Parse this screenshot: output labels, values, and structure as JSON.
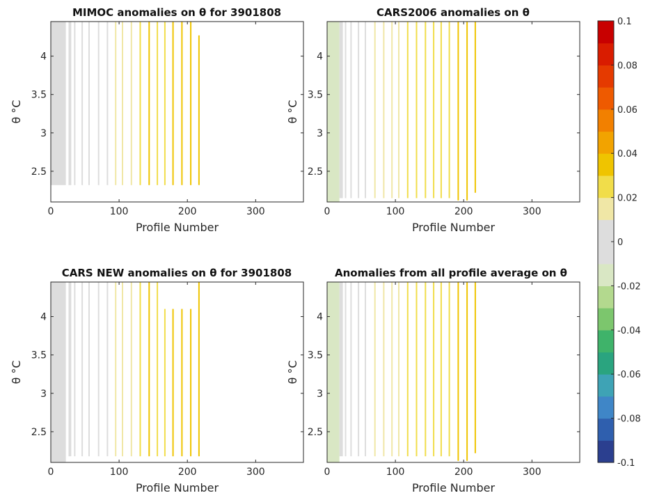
{
  "chart_data": [
    {
      "type": "heatmap",
      "title": "MIMOC anomalies on θ  for 3901808",
      "xlabel": "Profile Number",
      "ylabel": "θ °C",
      "xlim": [
        0,
        370
      ],
      "ylim": [
        2.1,
        4.45
      ],
      "xticks": [
        "0",
        "100",
        "200",
        "300"
      ],
      "yticks": [
        "2.5",
        "3",
        "3.5",
        "4"
      ],
      "profiles": [
        {
          "x": 0,
          "w": 22,
          "top": 4.45,
          "bottom": 2.32,
          "value": -0.003
        },
        {
          "x": 26,
          "w": 4,
          "top": 4.45,
          "bottom": 2.32,
          "value": -0.002
        },
        {
          "x": 34,
          "w": 2,
          "top": 4.45,
          "bottom": 2.32,
          "value": 0.0
        },
        {
          "x": 45,
          "w": 2,
          "top": 4.45,
          "bottom": 2.32,
          "value": 0.002
        },
        {
          "x": 55,
          "w": 2,
          "top": 4.45,
          "bottom": 2.32,
          "value": 0.004
        },
        {
          "x": 69,
          "w": 2,
          "top": 4.45,
          "bottom": 2.32,
          "value": 0.008
        },
        {
          "x": 82,
          "w": 2,
          "top": 4.45,
          "bottom": 2.32,
          "value": 0.01
        },
        {
          "x": 94,
          "w": 2,
          "top": 4.45,
          "bottom": 2.32,
          "value": 0.012
        },
        {
          "x": 104,
          "w": 2,
          "top": 4.45,
          "bottom": 2.32,
          "value": 0.014
        },
        {
          "x": 117,
          "w": 2,
          "top": 4.45,
          "bottom": 2.32,
          "value": 0.018
        },
        {
          "x": 130,
          "w": 2,
          "top": 4.45,
          "bottom": 2.32,
          "value": 0.022
        },
        {
          "x": 143,
          "w": 2,
          "top": 4.45,
          "bottom": 2.32,
          "value": 0.032
        },
        {
          "x": 155,
          "w": 2,
          "top": 4.45,
          "bottom": 2.32,
          "value": 0.028
        },
        {
          "x": 166,
          "w": 2,
          "top": 4.45,
          "bottom": 2.32,
          "value": 0.026
        },
        {
          "x": 178,
          "w": 2,
          "top": 4.45,
          "bottom": 2.32,
          "value": 0.03
        },
        {
          "x": 191,
          "w": 2,
          "top": 4.45,
          "bottom": 2.32,
          "value": 0.034
        },
        {
          "x": 204,
          "w": 2,
          "top": 4.45,
          "bottom": 2.32,
          "value": 0.036
        },
        {
          "x": 216,
          "w": 2,
          "top": 4.27,
          "bottom": 2.32,
          "value": 0.036
        }
      ]
    },
    {
      "type": "heatmap",
      "title": "CARS2006 anomalies on θ",
      "xlabel": "Profile Number",
      "ylabel": "θ °C",
      "xlim": [
        0,
        370
      ],
      "ylim": [
        2.1,
        4.45
      ],
      "xticks": [
        "0",
        "100",
        "200",
        "300"
      ],
      "yticks": [
        "2.5",
        "3",
        "3.5",
        "4"
      ],
      "profiles": [
        {
          "x": 0,
          "w": 18,
          "top": 4.45,
          "bottom": 2.1,
          "value": -0.013
        },
        {
          "x": 18,
          "w": 5,
          "top": 4.45,
          "bottom": 2.15,
          "value": -0.004
        },
        {
          "x": 26,
          "w": 2,
          "top": 4.45,
          "bottom": 2.15,
          "value": 0.0
        },
        {
          "x": 34,
          "w": 2,
          "top": 4.45,
          "bottom": 2.15,
          "value": 0.002
        },
        {
          "x": 45,
          "w": 2,
          "top": 4.45,
          "bottom": 2.15,
          "value": 0.004
        },
        {
          "x": 55,
          "w": 2,
          "top": 4.45,
          "bottom": 2.15,
          "value": 0.008
        },
        {
          "x": 69,
          "w": 2,
          "top": 4.45,
          "bottom": 2.15,
          "value": 0.012
        },
        {
          "x": 82,
          "w": 2,
          "top": 4.45,
          "bottom": 2.15,
          "value": 0.014
        },
        {
          "x": 94,
          "w": 2,
          "top": 4.45,
          "bottom": 2.15,
          "value": 0.016
        },
        {
          "x": 104,
          "w": 2,
          "top": 4.45,
          "bottom": 2.15,
          "value": 0.018
        },
        {
          "x": 117,
          "w": 2,
          "top": 4.45,
          "bottom": 2.15,
          "value": 0.02
        },
        {
          "x": 130,
          "w": 2,
          "top": 4.45,
          "bottom": 2.15,
          "value": 0.022
        },
        {
          "x": 143,
          "w": 2,
          "top": 4.45,
          "bottom": 2.15,
          "value": 0.024
        },
        {
          "x": 155,
          "w": 2,
          "top": 4.45,
          "bottom": 2.15,
          "value": 0.026
        },
        {
          "x": 166,
          "w": 2,
          "top": 4.45,
          "bottom": 2.15,
          "value": 0.026
        },
        {
          "x": 178,
          "w": 2,
          "top": 4.45,
          "bottom": 2.15,
          "value": 0.028
        },
        {
          "x": 191,
          "w": 2,
          "top": 4.45,
          "bottom": 2.12,
          "value": 0.03
        },
        {
          "x": 204,
          "w": 2,
          "top": 4.45,
          "bottom": 2.12,
          "value": 0.03
        },
        {
          "x": 216,
          "w": 2,
          "top": 4.45,
          "bottom": 2.22,
          "value": 0.03
        }
      ]
    },
    {
      "type": "heatmap",
      "title": "CARS NEW anomalies on θ for 3901808",
      "xlabel": "Profile Number",
      "ylabel": "θ °C",
      "xlim": [
        0,
        370
      ],
      "ylim": [
        2.1,
        4.45
      ],
      "xticks": [
        "0",
        "100",
        "200",
        "300"
      ],
      "yticks": [
        "2.5",
        "3",
        "3.5",
        "4"
      ],
      "profiles": [
        {
          "x": 0,
          "w": 22,
          "top": 4.45,
          "bottom": 2.1,
          "value": -0.002
        },
        {
          "x": 26,
          "w": 4,
          "top": 4.45,
          "bottom": 2.18,
          "value": -0.001
        },
        {
          "x": 34,
          "w": 2,
          "top": 4.45,
          "bottom": 2.18,
          "value": 0.0
        },
        {
          "x": 45,
          "w": 2,
          "top": 4.45,
          "bottom": 2.18,
          "value": 0.002
        },
        {
          "x": 55,
          "w": 2,
          "top": 4.45,
          "bottom": 2.18,
          "value": 0.004
        },
        {
          "x": 69,
          "w": 2,
          "top": 4.45,
          "bottom": 2.18,
          "value": 0.008
        },
        {
          "x": 82,
          "w": 2,
          "top": 4.45,
          "bottom": 2.18,
          "value": 0.01
        },
        {
          "x": 94,
          "w": 2,
          "top": 4.45,
          "bottom": 2.18,
          "value": 0.012
        },
        {
          "x": 104,
          "w": 2,
          "top": 4.45,
          "bottom": 2.18,
          "value": 0.014
        },
        {
          "x": 117,
          "w": 2,
          "top": 4.45,
          "bottom": 2.18,
          "value": 0.018
        },
        {
          "x": 130,
          "w": 2,
          "top": 4.45,
          "bottom": 2.18,
          "value": 0.022
        },
        {
          "x": 143,
          "w": 2,
          "top": 4.45,
          "bottom": 2.18,
          "value": 0.03
        },
        {
          "x": 155,
          "w": 2,
          "top": 4.45,
          "bottom": 2.18,
          "value": 0.028
        },
        {
          "x": 166,
          "w": 2,
          "top": 4.1,
          "bottom": 2.18,
          "value": 0.026
        },
        {
          "x": 178,
          "w": 2,
          "top": 4.1,
          "bottom": 2.18,
          "value": 0.03
        },
        {
          "x": 191,
          "w": 2,
          "top": 4.1,
          "bottom": 2.18,
          "value": 0.034
        },
        {
          "x": 204,
          "w": 2,
          "top": 4.1,
          "bottom": 2.18,
          "value": 0.036
        },
        {
          "x": 216,
          "w": 2,
          "top": 4.45,
          "bottom": 2.18,
          "value": 0.036
        }
      ]
    },
    {
      "type": "heatmap",
      "title": "Anomalies from all profile average on θ",
      "xlabel": "Profile Number",
      "ylabel": "θ °C",
      "xlim": [
        0,
        370
      ],
      "ylim": [
        2.1,
        4.45
      ],
      "xticks": [
        "0",
        "100",
        "200",
        "300"
      ],
      "yticks": [
        "2.5",
        "3",
        "3.5",
        "4"
      ],
      "profiles": [
        {
          "x": 0,
          "w": 18,
          "top": 4.45,
          "bottom": 2.1,
          "value": -0.014
        },
        {
          "x": 18,
          "w": 5,
          "top": 4.45,
          "bottom": 2.18,
          "value": -0.01
        },
        {
          "x": 26,
          "w": 2,
          "top": 4.45,
          "bottom": 2.18,
          "value": -0.005
        },
        {
          "x": 34,
          "w": 2,
          "top": 4.45,
          "bottom": 2.18,
          "value": 0.002
        },
        {
          "x": 45,
          "w": 2,
          "top": 4.45,
          "bottom": 2.18,
          "value": 0.004
        },
        {
          "x": 55,
          "w": 2,
          "top": 4.45,
          "bottom": 2.18,
          "value": 0.008
        },
        {
          "x": 69,
          "w": 2,
          "top": 4.45,
          "bottom": 2.18,
          "value": 0.012
        },
        {
          "x": 82,
          "w": 2,
          "top": 4.45,
          "bottom": 2.18,
          "value": 0.014
        },
        {
          "x": 94,
          "w": 2,
          "top": 4.45,
          "bottom": 2.18,
          "value": 0.016
        },
        {
          "x": 104,
          "w": 2,
          "top": 4.45,
          "bottom": 2.18,
          "value": 0.018
        },
        {
          "x": 117,
          "w": 2,
          "top": 4.45,
          "bottom": 2.18,
          "value": 0.02
        },
        {
          "x": 130,
          "w": 2,
          "top": 4.45,
          "bottom": 2.18,
          "value": 0.022
        },
        {
          "x": 143,
          "w": 2,
          "top": 4.45,
          "bottom": 2.18,
          "value": 0.024
        },
        {
          "x": 155,
          "w": 2,
          "top": 4.45,
          "bottom": 2.18,
          "value": 0.026
        },
        {
          "x": 166,
          "w": 2,
          "top": 4.45,
          "bottom": 2.18,
          "value": 0.026
        },
        {
          "x": 178,
          "w": 2,
          "top": 4.45,
          "bottom": 2.18,
          "value": 0.028
        },
        {
          "x": 191,
          "w": 2,
          "top": 4.45,
          "bottom": 2.12,
          "value": 0.03
        },
        {
          "x": 204,
          "w": 2,
          "top": 4.45,
          "bottom": 2.12,
          "value": 0.03
        },
        {
          "x": 216,
          "w": 2,
          "top": 4.45,
          "bottom": 2.22,
          "value": 0.03
        }
      ]
    }
  ],
  "colorbar": {
    "range": [
      -0.1,
      0.1
    ],
    "ticks": [
      "0.1",
      "0.08",
      "0.06",
      "0.04",
      "0.02",
      "0",
      "-0.02",
      "-0.04",
      "-0.06",
      "-0.08",
      "-0.1"
    ],
    "colormap": [
      "#2b3f8f",
      "#2f5fae",
      "#3f86c7",
      "#3ea3b5",
      "#2aa47f",
      "#3fb36a",
      "#7cc66d",
      "#b3d98e",
      "#d9e7c4",
      "#dddddd",
      "#dddddd",
      "#f0e7a6",
      "#f1dd4a",
      "#efc400",
      "#f2a300",
      "#f28000",
      "#ee5a00",
      "#e53a00",
      "#d91c00",
      "#c80000"
    ]
  }
}
